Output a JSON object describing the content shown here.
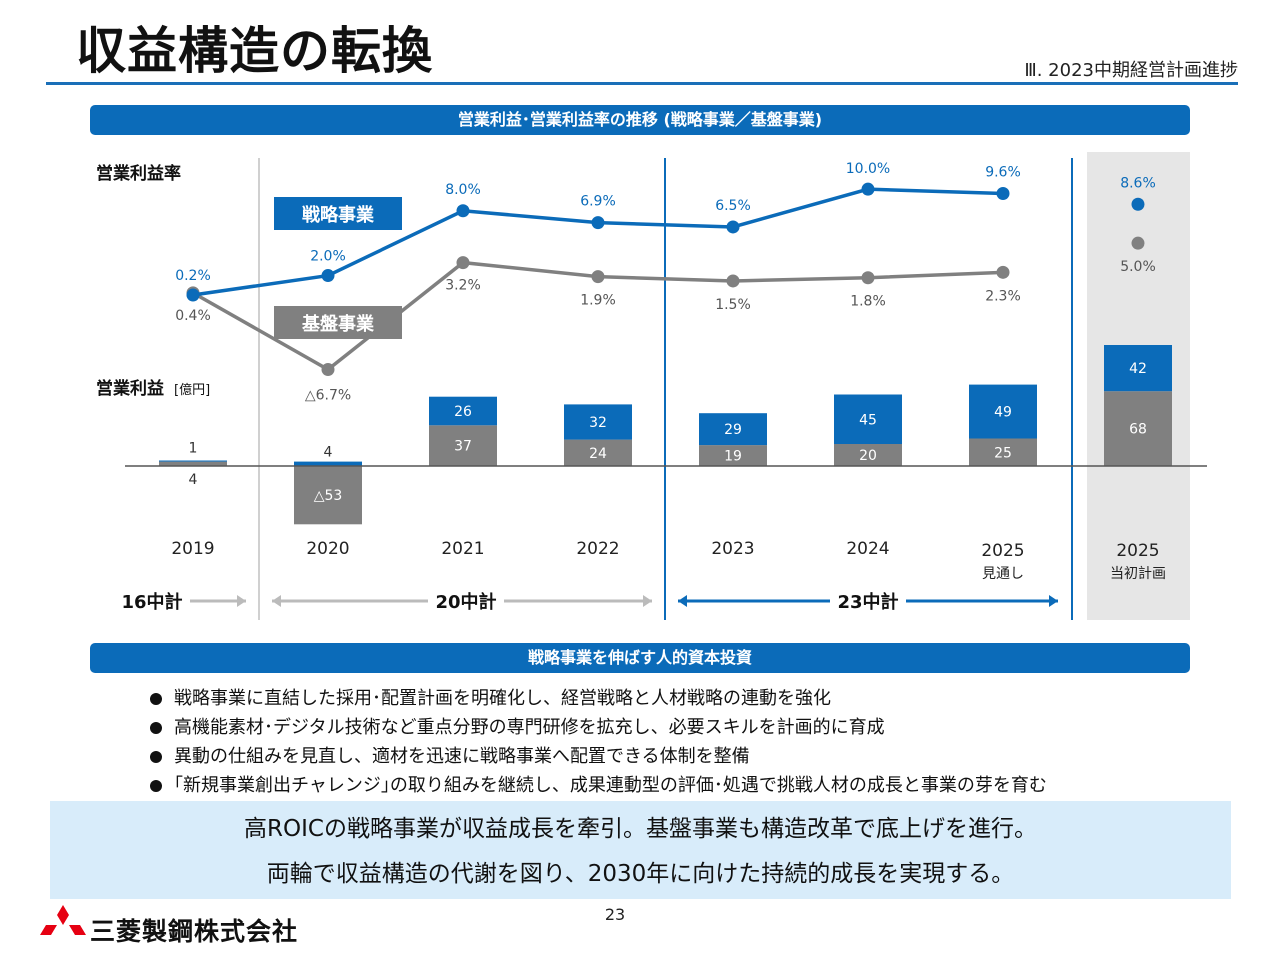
{
  "header": {
    "title": "収益構造の転換",
    "section": "Ⅲ. 2023中期経営計画進捗"
  },
  "chart_banner": "営業利益･営業利益率の推移 (戦略事業／基盤事業)",
  "chart_data": {
    "type": "bar+line",
    "label_margin": "営業利益率",
    "label_profit": "営業利益",
    "label_profit_unit": "[億円]",
    "categories": [
      "2019",
      "2020",
      "2021",
      "2022",
      "2023",
      "2024",
      "2025",
      "2025"
    ],
    "category_sublabels": [
      "",
      "",
      "",
      "",
      "",
      "",
      "見通し",
      "当初計画"
    ],
    "margin_series": [
      {
        "name": "戦略事業",
        "color": "#0b6bb9",
        "values": [
          0.2,
          2.0,
          8.0,
          6.9,
          6.5,
          10.0,
          9.6,
          8.6
        ],
        "labels": [
          "0.2%",
          "2.0%",
          "8.0%",
          "6.9%",
          "6.5%",
          "10.0%",
          "9.6%",
          "8.6%"
        ]
      },
      {
        "name": "基盤事業",
        "color": "#808080",
        "values": [
          0.4,
          -6.7,
          3.2,
          1.9,
          1.5,
          1.8,
          2.3,
          5.0
        ],
        "labels": [
          "0.4%",
          "△6.7%",
          "3.2%",
          "1.9%",
          "1.5%",
          "1.8%",
          "2.3%",
          "5.0%"
        ]
      }
    ],
    "profit_series": [
      {
        "name": "戦略事業",
        "color": "#0b6bb9",
        "values": [
          1,
          4,
          26,
          32,
          29,
          45,
          49,
          42
        ],
        "labels": [
          "1",
          "4",
          "26",
          "32",
          "29",
          "45",
          "49",
          "42"
        ]
      },
      {
        "name": "基盤事業",
        "color": "#808080",
        "values": [
          4,
          -53,
          37,
          24,
          19,
          20,
          25,
          68
        ],
        "labels": [
          "4",
          "△53",
          "37",
          "24",
          "19",
          "20",
          "25",
          "68"
        ]
      }
    ],
    "periods": [
      {
        "label": "16中計",
        "color": "#111111",
        "arrow_color": "#bbbbbb"
      },
      {
        "label": "20中計",
        "color": "#111111",
        "arrow_color": "#bbbbbb"
      },
      {
        "label": "23中計",
        "color": "#111111",
        "arrow_color": "#0b6bb9"
      }
    ],
    "plan_column_bg": "#e6e6e6"
  },
  "invest_banner": "戦略事業を伸ばす人的資本投資",
  "bullets": [
    "戦略事業に直結した採用･配置計画を明確化し、経営戦略と人材戦略の連動を強化",
    "高機能素材･デジタル技術など重点分野の専門研修を拡充し、必要スキルを計画的に育成",
    "異動の仕組みを見直し、適材を迅速に戦略事業へ配置できる体制を整備",
    "｢新規事業創出チャレンジ｣の取り組みを継続し、成果連動型の評価･処遇で挑戦人材の成長と事業の芽を育む"
  ],
  "summary": [
    "高ROICの戦略事業が収益成長を牽引。基盤事業も構造改革で底上げを進行。",
    "両輪で収益構造の代謝を図り、2030年に向けた持続的成長を実現する。"
  ],
  "footer": {
    "page_number": "23",
    "company": "三菱製鋼株式会社",
    "logo_color": "#e60012"
  }
}
